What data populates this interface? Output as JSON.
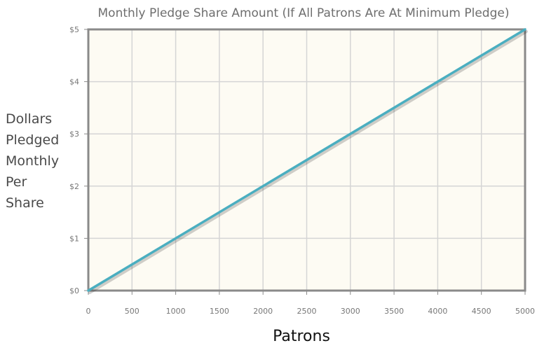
{
  "chart_data": {
    "type": "line",
    "title": "Monthly Pledge Share Amount (If All Patrons Are At Minimum Pledge)",
    "ylabel_lines": [
      "Dollars",
      "Pledged",
      "Monthly",
      "Per",
      "Share"
    ],
    "xlabel": "Patrons",
    "xlim": [
      0,
      5000
    ],
    "ylim": [
      0,
      5
    ],
    "xticks": [
      0,
      500,
      1000,
      1500,
      2000,
      2500,
      3000,
      3500,
      4000,
      4500,
      5000
    ],
    "yticks": [
      0,
      1,
      2,
      3,
      4,
      5
    ],
    "ytick_labels": [
      "$0",
      "$1",
      "$2",
      "$3",
      "$4",
      "$5"
    ],
    "grid": true,
    "series": [
      {
        "x": [
          0,
          5000
        ],
        "y": [
          0,
          5
        ],
        "color": "#4aaec0"
      }
    ],
    "colors": {
      "plot_bg": "#fdfbf3",
      "grid": "#d5d5d5",
      "frame": "#8a8a8a"
    }
  }
}
